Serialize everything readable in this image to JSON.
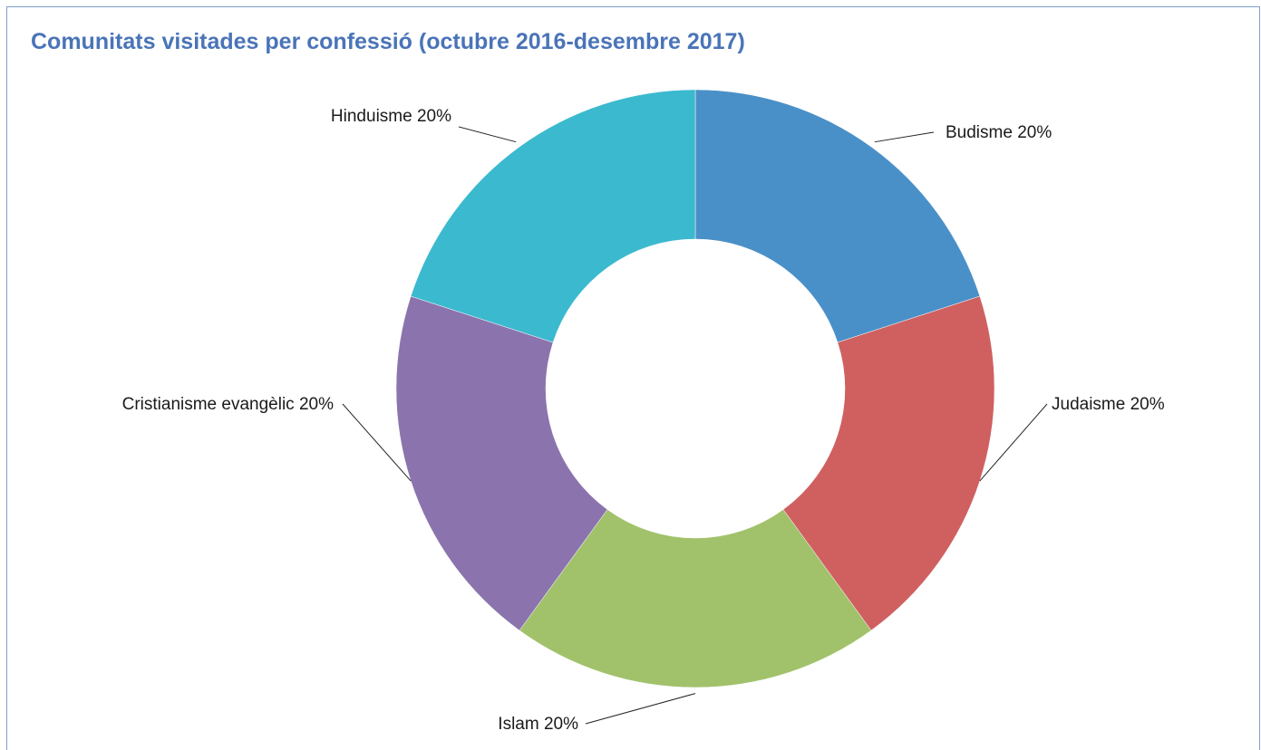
{
  "chart_data": {
    "type": "pie",
    "donut": true,
    "title": "Comunitats visitades per confessió (octubre 2016-desembre 2017)",
    "slices": [
      {
        "label": "Budisme",
        "value": 20,
        "display": "Budisme 20%",
        "color": "#4a90c8"
      },
      {
        "label": "Judaisme",
        "value": 20,
        "display": "Judaisme 20%",
        "color": "#d06060"
      },
      {
        "label": "Islam",
        "value": 20,
        "display": "Islam 20%",
        "color": "#a1c26b"
      },
      {
        "label": "Cristianisme evangèlic",
        "value": 20,
        "display": "Cristianisme evangèlic 20%",
        "color": "#8b74ad"
      },
      {
        "label": "Hinduisme",
        "value": 20,
        "display": "Hinduisme 20%",
        "color": "#3bb9cf"
      }
    ],
    "legend": "none",
    "label_placement": "outside-with-leader-lines"
  }
}
